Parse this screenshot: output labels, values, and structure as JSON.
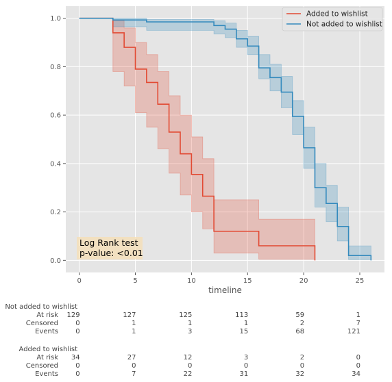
{
  "chart_data": {
    "type": "line",
    "xlabel": "timeline",
    "xlim": [
      -1.2,
      27.2
    ],
    "ylim": [
      -0.05,
      1.05
    ],
    "xticks": [
      0,
      5,
      10,
      15,
      20,
      25
    ],
    "yticks": [
      0.0,
      0.2,
      0.4,
      0.6,
      0.8,
      1.0
    ],
    "xtick_labels": [
      "0",
      "5",
      "10",
      "15",
      "20",
      "25"
    ],
    "ytick_labels": [
      "0.0",
      "0.2",
      "0.4",
      "0.6",
      "0.8",
      "1.0"
    ],
    "grid": true,
    "legend_position": "top-right",
    "series": [
      {
        "name": "Added to wishlist",
        "color": "#E24A33",
        "step": {
          "t": [
            0,
            3,
            4,
            5,
            6,
            7,
            8,
            9,
            10,
            11,
            12,
            16,
            21
          ],
          "s": [
            1.0,
            0.94,
            0.88,
            0.79,
            0.735,
            0.645,
            0.53,
            0.44,
            0.355,
            0.265,
            0.12,
            0.06,
            0.0
          ]
        },
        "ci_lower": [
          1.0,
          0.78,
          0.72,
          0.61,
          0.55,
          0.46,
          0.36,
          0.27,
          0.2,
          0.13,
          0.03,
          0.005,
          0.0
        ],
        "ci_upper": [
          1.0,
          0.99,
          0.96,
          0.9,
          0.85,
          0.78,
          0.68,
          0.6,
          0.51,
          0.42,
          0.25,
          0.17,
          0.17
        ]
      },
      {
        "name": "Not added to wishlist",
        "color": "#348ABD",
        "step": {
          "t": [
            0,
            3,
            6,
            12,
            13,
            14,
            15,
            16,
            17,
            18,
            19,
            20,
            21,
            22,
            23,
            24,
            26
          ],
          "s": [
            1.0,
            0.993,
            0.985,
            0.97,
            0.955,
            0.915,
            0.885,
            0.795,
            0.755,
            0.695,
            0.595,
            0.465,
            0.3,
            0.235,
            0.14,
            0.02,
            0.0
          ]
        },
        "ci_lower": [
          1.0,
          0.965,
          0.95,
          0.935,
          0.92,
          0.88,
          0.85,
          0.75,
          0.7,
          0.63,
          0.52,
          0.38,
          0.22,
          0.16,
          0.08,
          0.003,
          0.0
        ],
        "ci_upper": [
          1.0,
          1.0,
          0.995,
          0.99,
          0.98,
          0.95,
          0.925,
          0.85,
          0.81,
          0.76,
          0.66,
          0.55,
          0.4,
          0.31,
          0.22,
          0.06,
          0.06
        ]
      }
    ],
    "annotation": {
      "lines": [
        "Log Rank test",
        "p-value: <0.01"
      ],
      "background": "#F5DEB3"
    },
    "at_risk_table": [
      {
        "group": "Not added to wishlist",
        "rows": [
          {
            "label": "At risk",
            "values": [
              "129",
              "127",
              "125",
              "113",
              "59",
              "1"
            ]
          },
          {
            "label": "Censored",
            "values": [
              "0",
              "1",
              "1",
              "1",
              "2",
              "7"
            ]
          },
          {
            "label": "Events",
            "values": [
              "0",
              "1",
              "3",
              "15",
              "68",
              "121"
            ]
          }
        ]
      },
      {
        "group": "Added to wishlist",
        "rows": [
          {
            "label": "At risk",
            "values": [
              "34",
              "27",
              "12",
              "3",
              "2",
              "0"
            ]
          },
          {
            "label": "Censored",
            "values": [
              "0",
              "0",
              "0",
              "0",
              "0",
              "0"
            ]
          },
          {
            "label": "Events",
            "values": [
              "0",
              "7",
              "22",
              "31",
              "32",
              "34"
            ]
          }
        ]
      }
    ],
    "table_times": [
      0,
      5,
      10,
      15,
      20,
      25
    ]
  }
}
